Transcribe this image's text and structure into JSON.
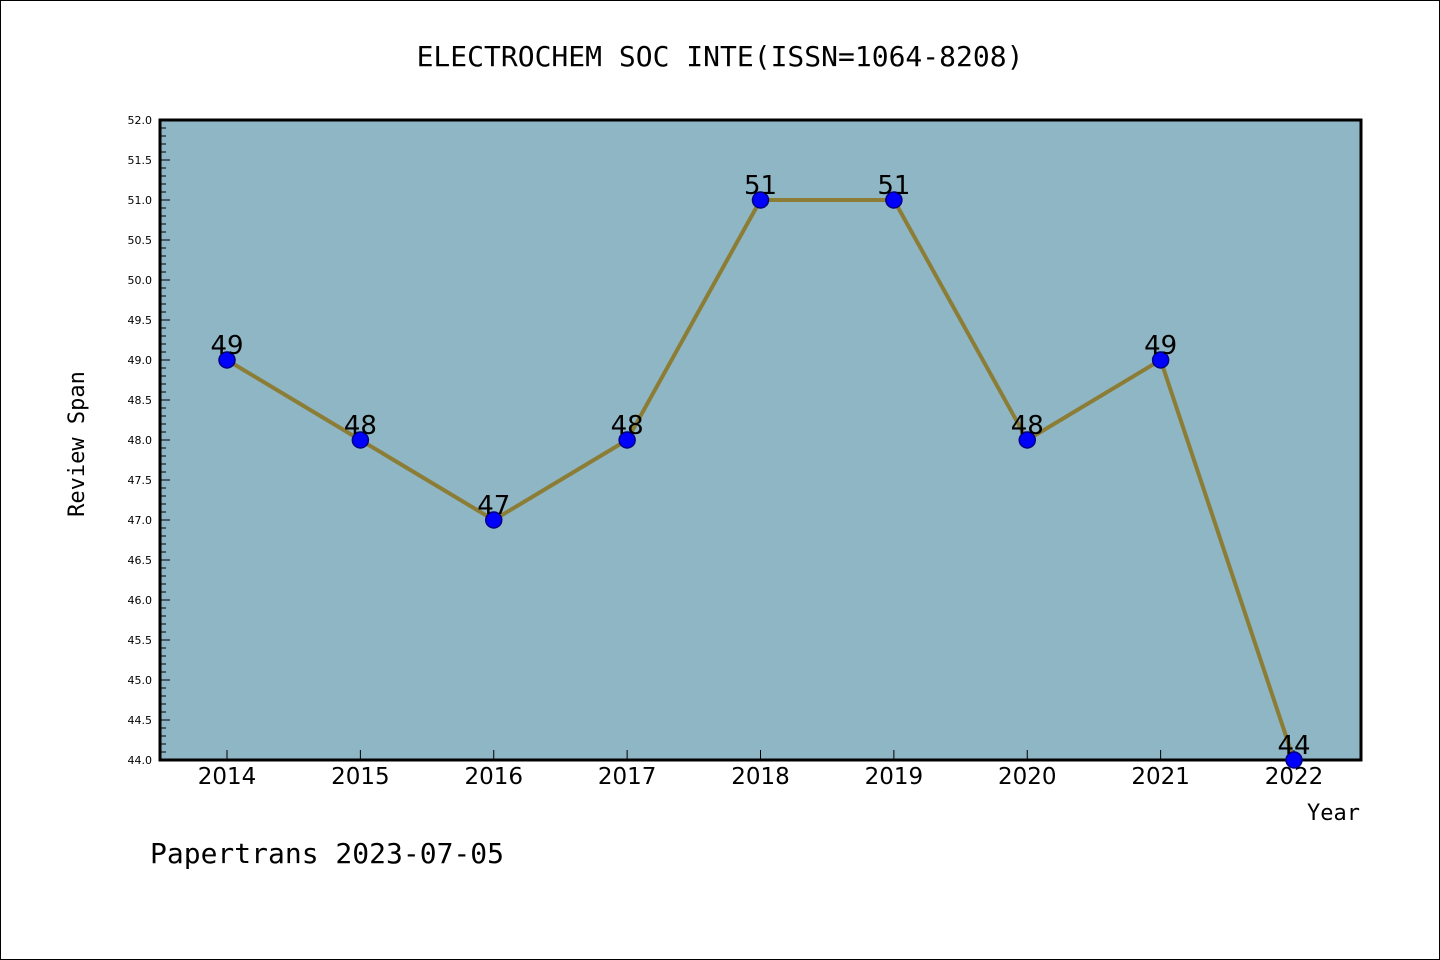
{
  "chart_data": {
    "type": "line",
    "title": "ELECTROCHEM SOC INTE(ISSN=1064-8208)",
    "xlabel": "Year",
    "ylabel": "Review Span",
    "footer": "Papertrans 2023-07-05",
    "categories": [
      "2014",
      "2015",
      "2016",
      "2017",
      "2018",
      "2019",
      "2020",
      "2021",
      "2022"
    ],
    "values": [
      49,
      48,
      47,
      48,
      51,
      51,
      48,
      49,
      44
    ],
    "data_labels": [
      "49",
      "48",
      "47",
      "48",
      "51",
      "51",
      "48",
      "49",
      "44"
    ],
    "ylim": [
      44.0,
      52.0
    ],
    "y_ticks": [
      "44.0",
      "44.5",
      "45.0",
      "45.5",
      "46.0",
      "46.5",
      "47.0",
      "47.5",
      "48.0",
      "48.5",
      "49.0",
      "49.5",
      "50.0",
      "50.5",
      "51.0",
      "51.5",
      "52.0"
    ],
    "grid": false,
    "legend": "none",
    "colors": {
      "plot_background": "#8fb6c4",
      "line": "#8b7d35",
      "marker_fill": "#0000ff",
      "marker_edge": "#000080",
      "axis": "#000000",
      "text": "#000000"
    }
  }
}
